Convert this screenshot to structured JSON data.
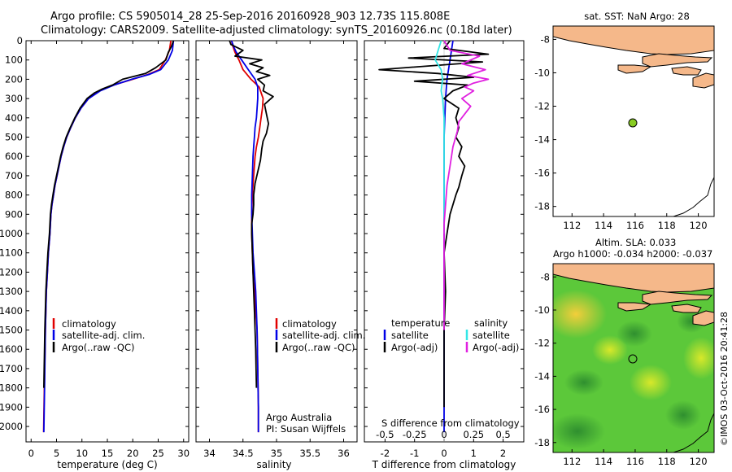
{
  "header": {
    "line1": "Argo profile: CS 5905014_28 25-Sep-2016 20160928_903 12.73S 115.808E",
    "line2": "Climatology: CARS2009. Satellite-adjusted climatology: synTS_20160926.nc (0.18d later)"
  },
  "colors": {
    "clim": "#e00000",
    "sat": "#0000e6",
    "argo": "#000000",
    "cyan": "#33e6e6",
    "magenta": "#e020e0",
    "land": "#f5b88a",
    "ocean": "#ffffff",
    "dot": "#88cc22"
  },
  "chart_data": [
    {
      "id": "temperature",
      "type": "line",
      "xlabel": "temperature (deg C)",
      "ylabel": "",
      "xlim": [
        -1,
        31
      ],
      "ylim": [
        2080,
        0
      ],
      "xticks": [
        0,
        5,
        10,
        15,
        20,
        25,
        30
      ],
      "yticks": [
        0,
        100,
        200,
        300,
        400,
        500,
        600,
        700,
        800,
        900,
        1000,
        1100,
        1200,
        1300,
        1400,
        1500,
        1600,
        1700,
        1800,
        1900,
        2000
      ],
      "legend": [
        "climatology",
        "satellite-adj. clim.",
        "Argo(..raw -QC)"
      ],
      "series": [
        {
          "name": "climatology",
          "color": "red",
          "x": [
            27.5,
            27.2,
            26.4,
            25.2,
            23.0,
            20.0,
            16.2,
            13.5,
            11.3,
            9.8,
            8.7,
            7.8,
            7.0,
            6.4,
            5.9,
            5.5,
            5.1,
            4.7,
            4.4,
            4.1,
            3.9,
            3.7,
            3.4,
            3.2,
            3.0,
            2.8,
            2.6,
            2.45
          ],
          "y": [
            0,
            50,
            100,
            150,
            175,
            200,
            230,
            260,
            300,
            350,
            400,
            450,
            500,
            550,
            600,
            650,
            700,
            750,
            800,
            850,
            900,
            1000,
            1100,
            1200,
            1300,
            1500,
            1800,
            2030
          ]
        },
        {
          "name": "satellite-adj. clim.",
          "color": "blue",
          "x": [
            28.0,
            27.8,
            27.0,
            25.5,
            23.2,
            19.8,
            16.3,
            13.6,
            11.3,
            9.8,
            8.7,
            7.8,
            7.0,
            6.4,
            5.9,
            5.5,
            5.1,
            4.7,
            4.4,
            4.1,
            3.9,
            3.7,
            3.4,
            3.2,
            3.0,
            2.8,
            2.65,
            2.5
          ],
          "y": [
            0,
            50,
            100,
            150,
            175,
            200,
            230,
            260,
            300,
            350,
            400,
            450,
            500,
            550,
            600,
            650,
            700,
            750,
            800,
            850,
            900,
            1000,
            1100,
            1200,
            1300,
            1500,
            1800,
            2030
          ]
        },
        {
          "name": "Argo(..raw -QC)",
          "color": "black",
          "x": [
            28.0,
            27.6,
            27.0,
            26.5,
            24.5,
            22.5,
            18.0,
            16.0,
            14.0,
            12.5,
            11.0,
            9.6,
            8.6,
            7.7,
            6.9,
            6.3,
            5.8,
            5.4,
            5.0,
            4.6,
            4.3,
            4.0,
            3.8,
            3.6,
            3.3,
            3.1,
            2.9,
            2.7,
            2.5
          ],
          "y": [
            0,
            30,
            60,
            100,
            140,
            170,
            200,
            230,
            250,
            270,
            300,
            350,
            400,
            450,
            500,
            550,
            600,
            650,
            700,
            750,
            800,
            850,
            900,
            1000,
            1100,
            1200,
            1300,
            1500,
            1800
          ]
        }
      ]
    },
    {
      "id": "salinity",
      "type": "line",
      "xlabel": "salinity",
      "xlim": [
        33.8,
        36.2
      ],
      "ylim": [
        2080,
        0
      ],
      "xticks": [
        34,
        34.5,
        35,
        35.5,
        36
      ],
      "legend": [
        "climatology",
        "satellite-adj. clim.",
        "Argo(..raw -QC)"
      ],
      "series": [
        {
          "name": "climatology",
          "color": "red",
          "x": [
            34.33,
            34.35,
            34.38,
            34.44,
            34.5,
            34.62,
            34.74,
            34.8,
            34.79,
            34.77,
            34.75,
            34.73,
            34.7,
            34.68,
            34.66,
            34.64,
            34.63,
            34.63,
            34.64,
            34.65,
            34.67,
            34.69,
            34.71,
            34.72,
            34.73,
            34.73
          ],
          "y": [
            0,
            30,
            60,
            100,
            150,
            200,
            240,
            300,
            350,
            400,
            450,
            500,
            550,
            600,
            700,
            800,
            900,
            1000,
            1100,
            1200,
            1300,
            1400,
            1500,
            1700,
            1900,
            2030
          ]
        },
        {
          "name": "satellite-adj. clim.",
          "color": "blue",
          "x": [
            34.33,
            34.36,
            34.4,
            34.48,
            34.58,
            34.68,
            34.72,
            34.72,
            34.71,
            34.7,
            34.68,
            34.67,
            34.66,
            34.65,
            34.64,
            34.63,
            34.63,
            34.64,
            34.65,
            34.67,
            34.69,
            34.71,
            34.72,
            34.73,
            34.73
          ],
          "y": [
            0,
            30,
            60,
            100,
            150,
            200,
            240,
            300,
            350,
            400,
            450,
            500,
            550,
            600,
            700,
            800,
            900,
            1000,
            1100,
            1200,
            1300,
            1500,
            1700,
            1900,
            2030
          ]
        },
        {
          "name": "Argo(..raw -QC)",
          "color": "black",
          "x": [
            34.3,
            34.32,
            34.5,
            34.38,
            34.78,
            34.6,
            34.8,
            34.7,
            34.9,
            34.72,
            34.82,
            34.8,
            34.95,
            34.82,
            34.85,
            34.88,
            34.85,
            34.8,
            34.78,
            34.76,
            34.72,
            34.68,
            34.66,
            34.66,
            34.65,
            34.63,
            34.63,
            34.64,
            34.65,
            34.66,
            34.67,
            34.68,
            34.69,
            34.7
          ],
          "y": [
            0,
            20,
            50,
            80,
            100,
            120,
            140,
            160,
            180,
            200,
            230,
            260,
            290,
            330,
            380,
            430,
            480,
            520,
            560,
            620,
            680,
            740,
            800,
            850,
            900,
            950,
            1000,
            1100,
            1200,
            1300,
            1400,
            1500,
            1600,
            1800
          ]
        }
      ]
    },
    {
      "id": "difference",
      "type": "line",
      "xlabel": "T difference from climatology",
      "top_label": "S difference from climatology",
      "xlim": [
        -2.7,
        2.7
      ],
      "ylim": [
        2080,
        0
      ],
      "xticks": [
        -2,
        -1,
        0,
        1,
        2
      ],
      "sticks_labels": [
        "-0.5",
        "-0.25",
        "0",
        "0.25",
        "0.5"
      ],
      "sticks_values": [
        -2,
        -1,
        0,
        1,
        2
      ],
      "legend": {
        "temperature_title": "temperature",
        "salinity_title": "salinity",
        "satellite": "satellite",
        "argo": "Argo(-adj)"
      },
      "series": [
        {
          "name": "temperature satellite",
          "color": "blue",
          "x": [
            0.3,
            0.2,
            0.1,
            0.05,
            0.0,
            0.0,
            0.0,
            0.0,
            0.0,
            0.0,
            0.0,
            0.0
          ],
          "y": [
            0,
            100,
            200,
            300,
            500,
            700,
            900,
            1100,
            1300,
            1500,
            1800,
            2030
          ]
        },
        {
          "name": "temperature Argo(-adj)",
          "color": "black",
          "x": [
            0.2,
            0.0,
            1.5,
            -1.2,
            1.3,
            -2.2,
            -0.2,
            1.0,
            -1.0,
            0.8,
            0.3,
            0.0,
            0.5,
            0.4,
            0.5,
            0.4,
            0.6,
            0.5,
            0.7,
            0.6,
            0.5,
            0.4,
            0.3,
            0.2,
            0.1,
            0.0,
            0.05,
            0.0,
            0.0,
            0.0
          ],
          "y": [
            0,
            40,
            70,
            90,
            110,
            150,
            170,
            190,
            210,
            230,
            260,
            300,
            350,
            400,
            450,
            500,
            550,
            600,
            650,
            700,
            760,
            800,
            850,
            900,
            1000,
            1100,
            1300,
            1500,
            1700,
            1900
          ]
        },
        {
          "name": "salinity satellite",
          "color": "cyan",
          "x": [
            -0.1,
            -0.2,
            -0.3,
            -0.1,
            -0.05,
            -0.1,
            -0.05,
            0.0,
            0.0,
            0.0,
            0.0
          ],
          "y": [
            0,
            50,
            100,
            150,
            200,
            260,
            300,
            400,
            600,
            800,
            1000
          ]
        },
        {
          "name": "salinity Argo(-adj)",
          "color": "magenta",
          "x": [
            0.0,
            0.2,
            1.2,
            0.6,
            1.4,
            0.8,
            1.5,
            1.0,
            0.7,
            1.0,
            0.6,
            0.9,
            0.7,
            0.5,
            0.45,
            0.3,
            0.2,
            0.1,
            0.05,
            0.0,
            0.0,
            0.0
          ],
          "y": [
            0,
            50,
            80,
            120,
            150,
            180,
            200,
            220,
            240,
            260,
            300,
            340,
            380,
            420,
            470,
            550,
            650,
            750,
            850,
            950,
            1200,
            1500
          ]
        }
      ]
    }
  ],
  "depth_ticks": [
    "0",
    "100",
    "200",
    "300",
    "400",
    "500",
    "600",
    "700",
    "800",
    "900",
    "1000",
    "1100",
    "1200",
    "1300",
    "1400",
    "1500",
    "1600",
    "1700",
    "1800",
    "1900",
    "2000"
  ],
  "map_sst": {
    "title": "sat. SST: NaN Argo: 28",
    "xticks": [
      "112",
      "114",
      "116",
      "118",
      "120"
    ],
    "yticks": [
      "-8",
      "-10",
      "-12",
      "-14",
      "-16",
      "-18"
    ],
    "xlim": [
      110.8,
      121.0
    ],
    "ylim": [
      -7.2,
      -18.6
    ],
    "float_position": [
      115.808,
      -12.73
    ]
  },
  "map_sla": {
    "title1": "Altim. SLA: 0.033",
    "title2": "Argo h1000: -0.034 h2000: -0.037",
    "xticks": [
      "112",
      "114",
      "116",
      "118",
      "120"
    ],
    "yticks": [
      "-8",
      "-10",
      "-12",
      "-14",
      "-16",
      "-18"
    ],
    "xlim": [
      110.8,
      121.0
    ],
    "ylim": [
      -7.2,
      -18.6
    ],
    "float_position": [
      115.808,
      -12.73
    ]
  },
  "credits": {
    "institution": "Argo Australia",
    "pi": "PI: Susan Wijffels",
    "stamp": "©IMOS 03-Oct-2016 20:41:28"
  }
}
